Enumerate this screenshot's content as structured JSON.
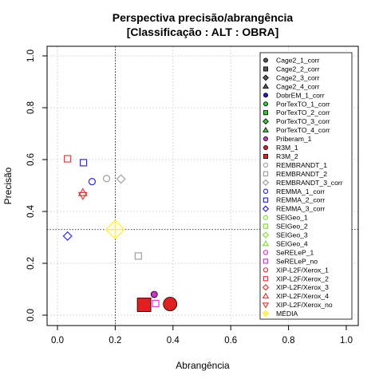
{
  "chart_data": {
    "type": "scatter",
    "title": "Perspectiva precisão/abrangência",
    "subtitle": "[Classificação : ALT : OBRA]",
    "xlabel": "Abrangência",
    "ylabel": "Precisão",
    "xlim": [
      0,
      1
    ],
    "ylim": [
      0,
      1
    ],
    "x_ticks": [
      "0.0",
      "0.2",
      "0.4",
      "0.6",
      "0.8",
      "1.0"
    ],
    "y_ticks": [
      "0.0",
      "0.2",
      "0.4",
      "0.6",
      "0.8",
      "1.0"
    ],
    "grid": true,
    "reference_lines": {
      "x": 0.2,
      "y": 0.33
    },
    "legend_position": "top-right",
    "series": [
      {
        "name": "Cage2_1_corr",
        "color": "#555555",
        "symbol": "circle-filled",
        "points": []
      },
      {
        "name": "Cage2_2_corr",
        "color": "#555555",
        "symbol": "square-filled",
        "points": []
      },
      {
        "name": "Cage2_3_corr",
        "color": "#555555",
        "symbol": "diamond-filled",
        "points": []
      },
      {
        "name": "Cage2_4_corr",
        "color": "#555555",
        "symbol": "triangle-filled",
        "points": []
      },
      {
        "name": "DobrEM_1_corr",
        "color": "#1c1cd6",
        "symbol": "circle-filled",
        "points": []
      },
      {
        "name": "PorTexTO_1_corr",
        "color": "#33cc33",
        "symbol": "circle-filled",
        "points": []
      },
      {
        "name": "PorTexTO_2_corr",
        "color": "#33cc33",
        "symbol": "square-filled",
        "points": []
      },
      {
        "name": "PorTexTO_3_corr",
        "color": "#33cc33",
        "symbol": "diamond-filled",
        "points": []
      },
      {
        "name": "PorTexTO_4_corr",
        "color": "#33cc33",
        "symbol": "triangle-filled",
        "points": []
      },
      {
        "name": "Priberam_1",
        "color": "#cc33cc",
        "symbol": "circle-filled",
        "points": [
          {
            "x": 0.335,
            "y": 0.08,
            "size": 1
          }
        ]
      },
      {
        "name": "R3M_1",
        "color": "#e02020",
        "symbol": "circle-filled",
        "points": [
          {
            "x": 0.39,
            "y": 0.043,
            "size": 2
          }
        ]
      },
      {
        "name": "R3M_2",
        "color": "#e02020",
        "symbol": "square-filled",
        "points": [
          {
            "x": 0.3,
            "y": 0.04,
            "size": 2
          }
        ]
      },
      {
        "name": "REMBRANDT_1",
        "color": "#a0a0a0",
        "symbol": "circle-open",
        "points": [
          {
            "x": 0.17,
            "y": 0.527,
            "size": 1
          }
        ]
      },
      {
        "name": "REMBRANDT_2",
        "color": "#a0a0a0",
        "symbol": "square-open",
        "points": [
          {
            "x": 0.28,
            "y": 0.228,
            "size": 1
          }
        ]
      },
      {
        "name": "REMBRANDT_3_corr",
        "color": "#a0a0a0",
        "symbol": "diamond-open",
        "points": [
          {
            "x": 0.22,
            "y": 0.525,
            "size": 1
          }
        ]
      },
      {
        "name": "REMMA_1_corr",
        "color": "#2a2adf",
        "symbol": "circle-open",
        "points": [
          {
            "x": 0.12,
            "y": 0.515,
            "size": 1
          }
        ]
      },
      {
        "name": "REMMA_2_corr",
        "color": "#2a2adf",
        "symbol": "square-open",
        "points": [
          {
            "x": 0.09,
            "y": 0.588,
            "size": 1
          }
        ]
      },
      {
        "name": "REMMA_3_corr",
        "color": "#2a2adf",
        "symbol": "diamond-open",
        "points": [
          {
            "x": 0.035,
            "y": 0.305,
            "size": 1
          }
        ]
      },
      {
        "name": "SEIGeo_1",
        "color": "#88dd33",
        "symbol": "circle-open",
        "points": []
      },
      {
        "name": "SEIGeo_2",
        "color": "#88dd33",
        "symbol": "square-open",
        "points": []
      },
      {
        "name": "SEIGeo_3",
        "color": "#88dd33",
        "symbol": "diamond-open",
        "points": []
      },
      {
        "name": "SEIGeo_4",
        "color": "#88dd33",
        "symbol": "triangle-open",
        "points": []
      },
      {
        "name": "SeRELeP_1",
        "color": "#e033e0",
        "symbol": "circle-open",
        "points": []
      },
      {
        "name": "SeRELeP_no",
        "color": "#e033e0",
        "symbol": "square-open",
        "points": [
          {
            "x": 0.34,
            "y": 0.045,
            "size": 1
          }
        ]
      },
      {
        "name": "XIP-L2F/Xerox_1",
        "color": "#e03a3a",
        "symbol": "circle-open",
        "points": []
      },
      {
        "name": "XIP-L2F/Xerox_2",
        "color": "#e03a3a",
        "symbol": "square-open",
        "points": [
          {
            "x": 0.035,
            "y": 0.603,
            "size": 1
          }
        ]
      },
      {
        "name": "XIP-L2F/Xerox_3",
        "color": "#e03a3a",
        "symbol": "diamond-open",
        "points": []
      },
      {
        "name": "XIP-L2F/Xerox_4",
        "color": "#e03a3a",
        "symbol": "triangle-open",
        "points": [
          {
            "x": 0.088,
            "y": 0.472,
            "size": 1
          }
        ]
      },
      {
        "name": "XIP-L2F/Xerox_no",
        "color": "#e03a3a",
        "symbol": "triangle-down-open",
        "points": [
          {
            "x": 0.088,
            "y": 0.462,
            "size": 1
          }
        ]
      },
      {
        "name": "MÉDIA",
        "color": "#ffee44",
        "symbol": "cross-diamond",
        "points": [
          {
            "x": 0.2,
            "y": 0.33,
            "size": 2
          }
        ]
      }
    ]
  }
}
